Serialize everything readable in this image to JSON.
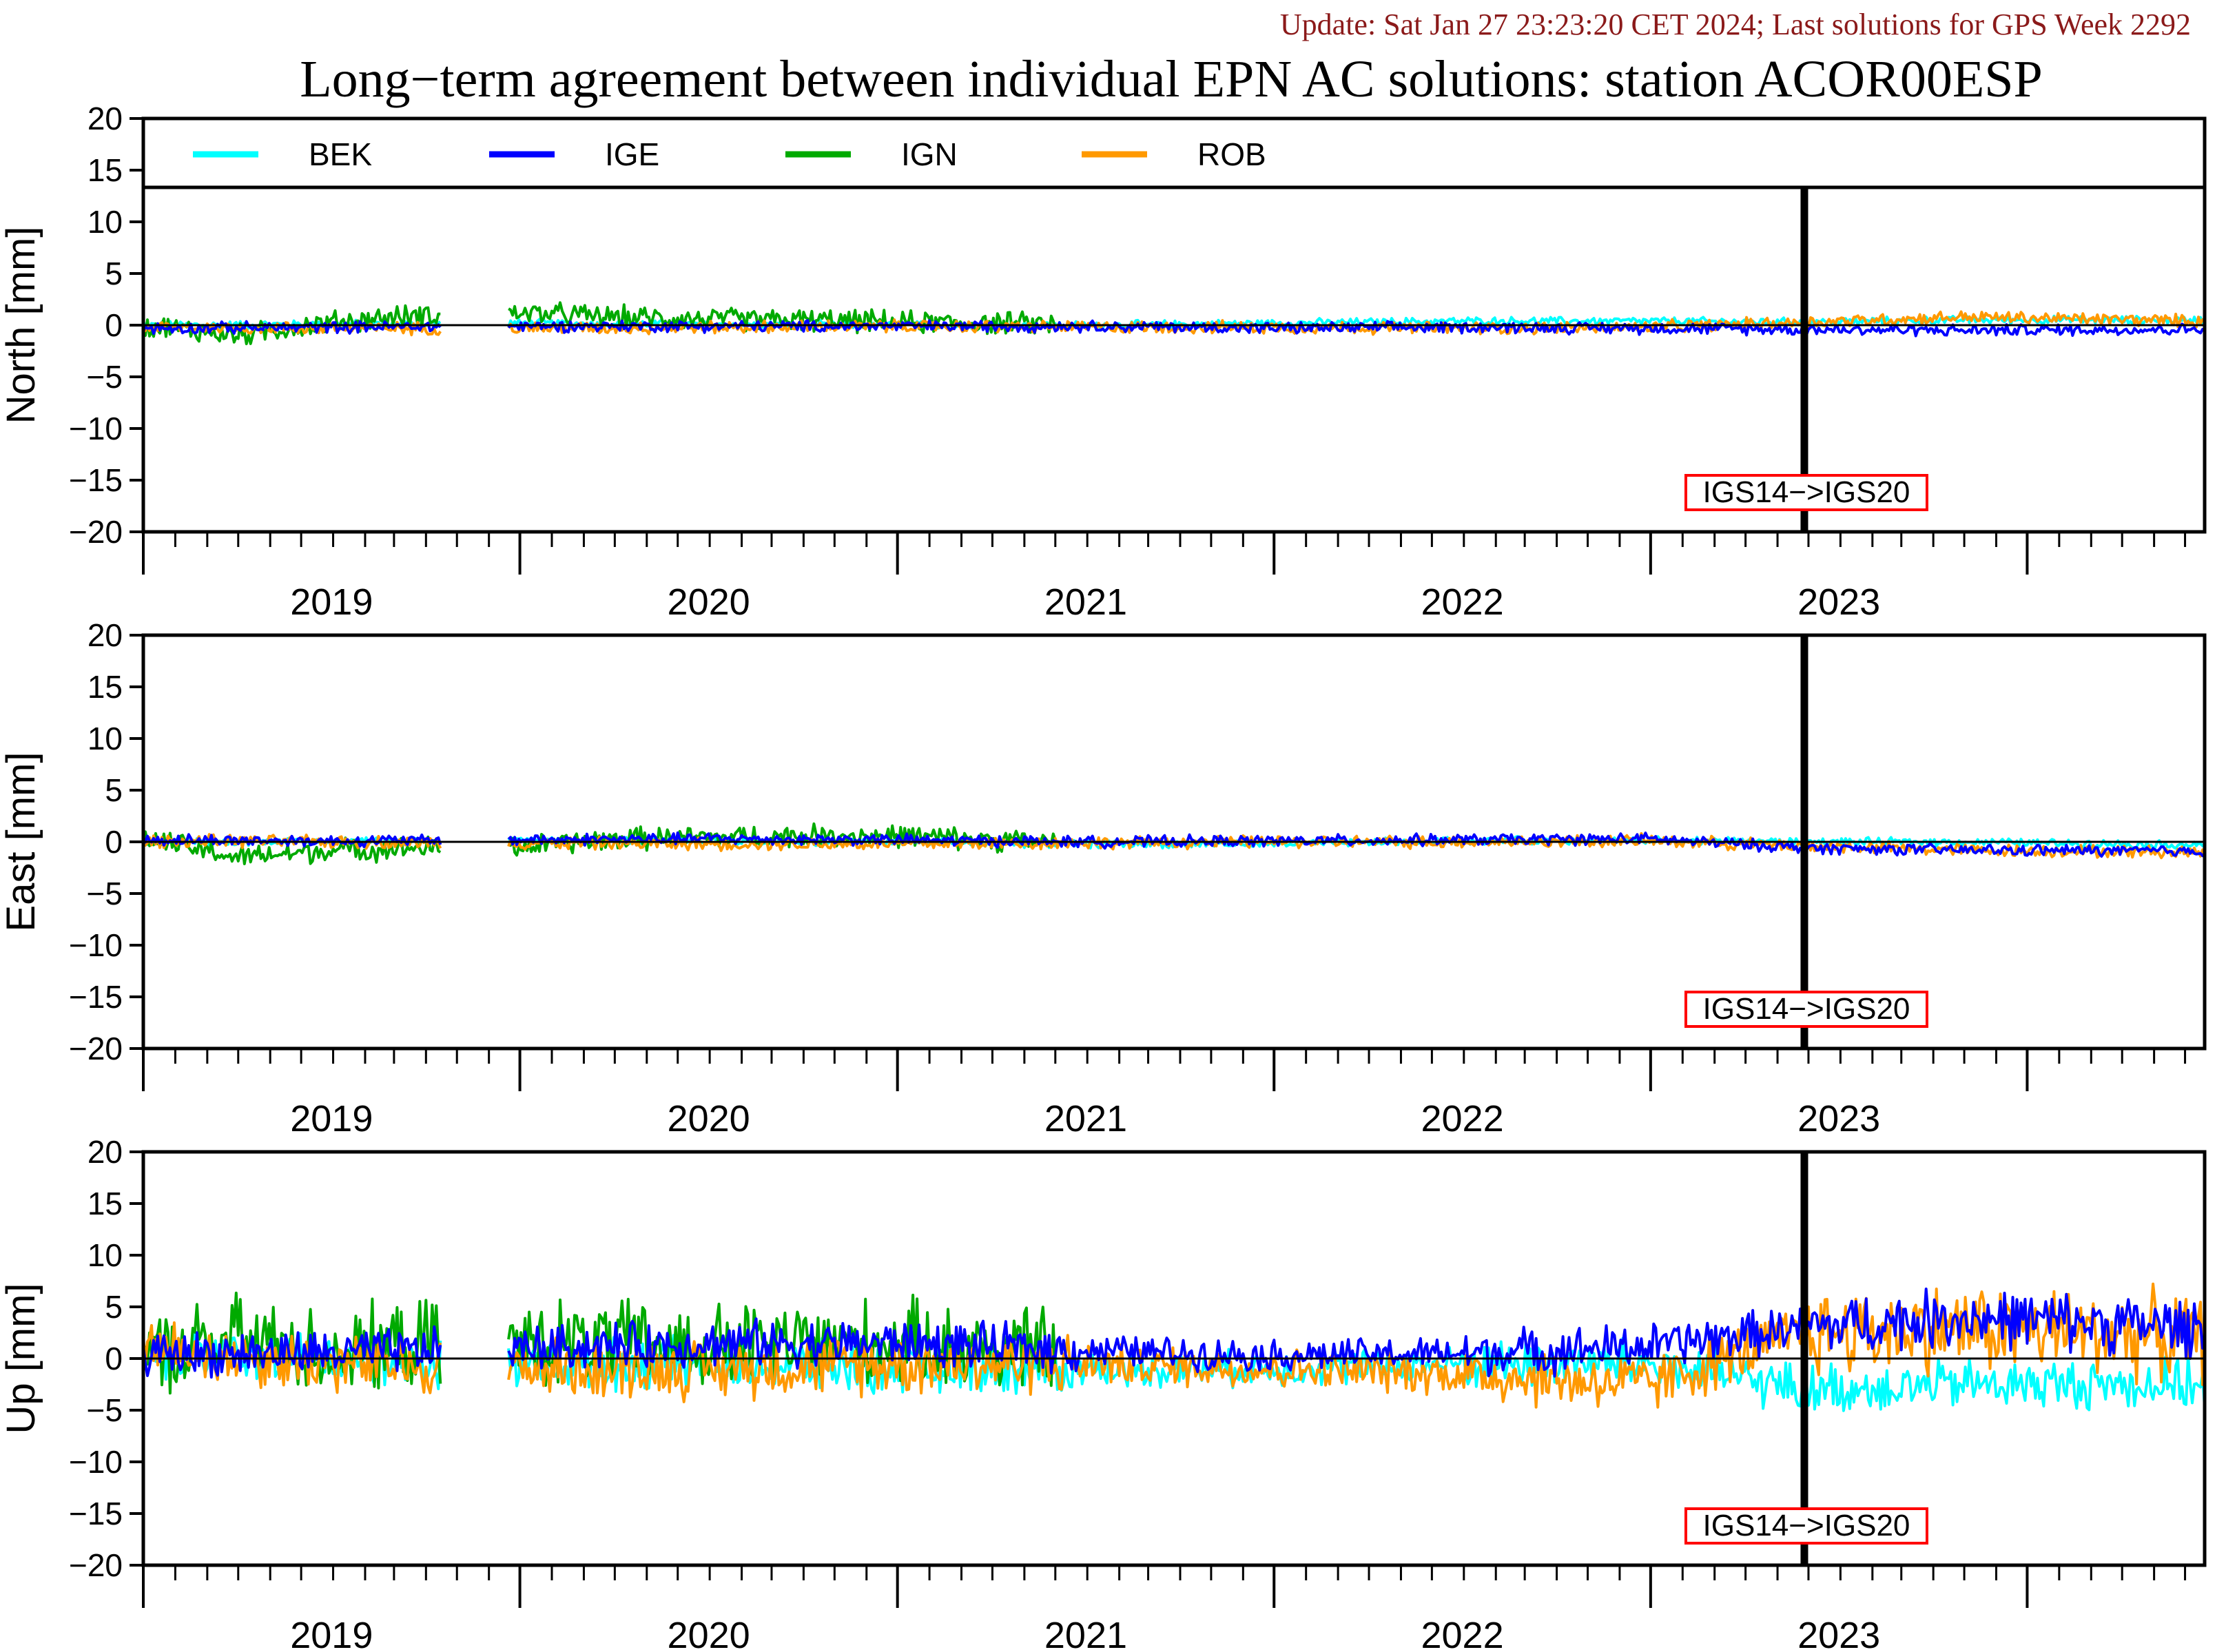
{
  "header": {
    "update_text": "Update: Sat Jan 27 23:23:20 CET 2024; Last solutions for GPS Week 2292",
    "title": "Long−term agreement between individual EPN AC solutions: station ACOR00ESP"
  },
  "chart_data": {
    "type": "line",
    "x_axis": {
      "kind": "date",
      "range": [
        "2018-07-01",
        "2023-12-20"
      ],
      "year_labels": [
        "2019",
        "2020",
        "2021",
        "2022",
        "2023"
      ],
      "major_ticks": [
        "2018-07-01",
        "2019-07-01",
        "2020-07-01",
        "2021-07-01",
        "2022-07-01",
        "2023-07-01"
      ],
      "minor_tick_unit": "month"
    },
    "y_axis": {
      "unit": "mm",
      "range": [
        -20,
        20
      ],
      "ticks": [
        20,
        15,
        10,
        5,
        0,
        -5,
        -10,
        -15,
        -20
      ],
      "tick_labels": [
        "20",
        "15",
        "10",
        "5",
        "0",
        "−5",
        "−10",
        "−15",
        "−20"
      ],
      "zero_line": true
    },
    "legend": {
      "placement": "top",
      "entries": [
        {
          "name": "BEK",
          "color": "#00ffff"
        },
        {
          "name": "IGE",
          "color": "#0000ff"
        },
        {
          "name": "IGN",
          "color": "#00aa00"
        },
        {
          "name": "ROB",
          "color": "#ff9900"
        }
      ]
    },
    "reference_change": {
      "date": "2022-11-27",
      "label": "IGS14−>IGS20",
      "line_color": "#000000",
      "box_color": "#ff0000"
    },
    "panels": [
      {
        "ylabel": "North [mm]",
        "series": [
          {
            "name": "BEK",
            "color": "#00ffff",
            "dates": [
              "2018-07-01",
              "2019-01-01",
              "2019-07-01",
              "2020-01-01",
              "2020-07-01",
              "2021-01-01",
              "2021-07-01",
              "2022-01-01",
              "2022-07-01",
              "2022-11-27",
              "2023-05-01",
              "2023-12-20"
            ],
            "values": [
              0.0,
              0.1,
              0.2,
              0.1,
              0.0,
              0.0,
              0.2,
              0.4,
              0.4,
              0.3,
              0.5,
              0.5
            ]
          },
          {
            "name": "IGE",
            "color": "#0000ff",
            "dates": [
              "2018-07-01",
              "2019-01-01",
              "2019-07-01",
              "2020-01-01",
              "2020-07-01",
              "2021-01-01",
              "2021-07-01",
              "2022-01-01",
              "2022-07-01",
              "2022-11-27",
              "2023-05-01",
              "2023-12-20"
            ],
            "values": [
              -0.3,
              -0.2,
              -0.1,
              -0.1,
              -0.1,
              -0.1,
              -0.3,
              -0.2,
              -0.3,
              -0.4,
              -0.5,
              -0.4
            ]
          },
          {
            "name": "IGN",
            "color": "#00aa00",
            "dates": [
              "2018-07-01",
              "2018-10-01",
              "2019-01-01",
              "2019-04-01",
              "2019-07-01",
              "2019-10-01",
              "2020-01-01",
              "2020-04-01",
              "2020-07-01",
              "2020-10-01",
              "2020-12-01"
            ],
            "values": [
              0.0,
              -1.0,
              0.3,
              1.0,
              1.2,
              0.8,
              0.6,
              0.5,
              0.3,
              0.2,
              0.1
            ]
          },
          {
            "name": "ROB",
            "color": "#ff9900",
            "dates": [
              "2018-07-01",
              "2019-01-01",
              "2019-07-01",
              "2020-01-01",
              "2020-07-01",
              "2021-01-01",
              "2021-07-01",
              "2022-01-01",
              "2022-07-01",
              "2022-11-27",
              "2023-05-01",
              "2023-12-20"
            ],
            "values": [
              -0.2,
              -0.3,
              -0.3,
              -0.2,
              -0.1,
              -0.2,
              -0.2,
              -0.3,
              -0.2,
              0.3,
              0.8,
              0.4
            ]
          }
        ]
      },
      {
        "ylabel": "East [mm]",
        "series": [
          {
            "name": "BEK",
            "color": "#00ffff",
            "dates": [
              "2018-07-01",
              "2019-01-01",
              "2019-07-01",
              "2020-01-01",
              "2020-07-01",
              "2021-01-01",
              "2021-07-01",
              "2022-01-01",
              "2022-07-01",
              "2022-11-27",
              "2023-05-01",
              "2023-12-20"
            ],
            "values": [
              0.0,
              0.1,
              0.1,
              0.1,
              0.0,
              -0.2,
              -0.2,
              0.1,
              0.2,
              0.0,
              0.0,
              -0.3
            ]
          },
          {
            "name": "IGE",
            "color": "#0000ff",
            "dates": [
              "2018-07-01",
              "2019-01-01",
              "2019-07-01",
              "2020-01-01",
              "2020-07-01",
              "2021-01-01",
              "2021-07-01",
              "2022-01-01",
              "2022-07-01",
              "2022-11-27",
              "2023-05-01",
              "2023-12-20"
            ],
            "values": [
              0.2,
              0.1,
              0.2,
              0.3,
              0.2,
              0.0,
              0.1,
              0.2,
              0.3,
              -0.6,
              -0.8,
              -0.9
            ]
          },
          {
            "name": "IGN",
            "color": "#00aa00",
            "dates": [
              "2018-07-01",
              "2018-10-01",
              "2019-01-01",
              "2019-04-01",
              "2019-07-01",
              "2019-10-01",
              "2020-01-01",
              "2020-04-01",
              "2020-07-01",
              "2020-10-01",
              "2020-12-01"
            ],
            "values": [
              0.3,
              -1.5,
              -0.8,
              -0.6,
              -0.5,
              0.3,
              0.4,
              0.6,
              0.6,
              0.2,
              0.0
            ]
          },
          {
            "name": "ROB",
            "color": "#ff9900",
            "dates": [
              "2018-07-01",
              "2019-01-01",
              "2019-07-01",
              "2020-01-01",
              "2020-07-01",
              "2021-01-01",
              "2021-07-01",
              "2022-01-01",
              "2022-07-01",
              "2022-11-27",
              "2023-05-01",
              "2023-12-20"
            ],
            "values": [
              0.1,
              0.0,
              -0.1,
              -0.2,
              -0.2,
              -0.1,
              0.0,
              0.0,
              0.1,
              -0.4,
              -0.8,
              -1.0
            ]
          }
        ]
      },
      {
        "ylabel": "Up [mm]",
        "series": [
          {
            "name": "BEK",
            "color": "#00ffff",
            "dates": [
              "2018-07-01",
              "2019-01-01",
              "2019-07-01",
              "2020-01-01",
              "2020-07-01",
              "2021-01-01",
              "2021-07-01",
              "2022-01-01",
              "2022-07-01",
              "2022-11-27",
              "2023-05-01",
              "2023-12-20"
            ],
            "values": [
              0.5,
              0.0,
              -0.5,
              -0.5,
              -1.0,
              -1.0,
              -1.0,
              -0.5,
              -0.5,
              -3.0,
              -2.5,
              -2.5
            ]
          },
          {
            "name": "IGE",
            "color": "#0000ff",
            "dates": [
              "2018-07-01",
              "2019-01-01",
              "2019-07-01",
              "2020-01-01",
              "2020-07-01",
              "2021-01-01",
              "2021-07-01",
              "2022-01-01",
              "2022-07-01",
              "2022-11-27",
              "2023-05-01",
              "2023-12-20"
            ],
            "values": [
              0.5,
              0.5,
              1.0,
              1.5,
              1.5,
              0.8,
              0.3,
              0.5,
              1.2,
              3.0,
              4.0,
              3.0
            ]
          },
          {
            "name": "IGN",
            "color": "#00aa00",
            "dates": [
              "2018-07-01",
              "2018-10-01",
              "2019-01-01",
              "2019-04-01",
              "2019-07-01",
              "2019-10-01",
              "2020-01-01",
              "2020-04-01",
              "2020-07-01",
              "2020-10-01",
              "2020-12-01"
            ],
            "values": [
              0.0,
              2.0,
              0.5,
              1.5,
              1.5,
              1.5,
              1.0,
              1.5,
              1.5,
              1.0,
              1.0
            ]
          },
          {
            "name": "ROB",
            "color": "#ff9900",
            "dates": [
              "2018-07-01",
              "2019-01-01",
              "2019-07-01",
              "2020-01-01",
              "2020-07-01",
              "2021-01-01",
              "2021-07-01",
              "2022-01-01",
              "2022-07-01",
              "2022-11-27",
              "2023-05-01",
              "2023-12-20"
            ],
            "values": [
              1.0,
              -0.5,
              -1.0,
              -1.0,
              -0.5,
              -0.5,
              -1.0,
              -1.5,
              -2.5,
              2.5,
              3.0,
              2.0
            ]
          }
        ]
      }
    ]
  }
}
